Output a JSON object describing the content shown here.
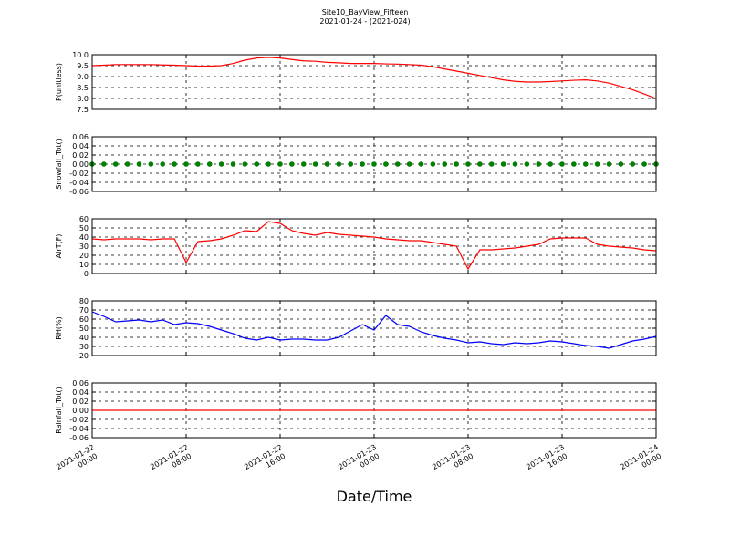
{
  "title": "Site10_BayView_Fifteen",
  "subtitle": "2021-01-24 - (2021-024)",
  "xlabel": "Date/Time",
  "x": [
    "2021-01-22 00:00",
    "2021-01-22 01:00",
    "2021-01-22 02:00",
    "2021-01-22 03:00",
    "2021-01-22 04:00",
    "2021-01-22 05:00",
    "2021-01-22 06:00",
    "2021-01-22 07:00",
    "2021-01-22 08:00",
    "2021-01-22 09:00",
    "2021-01-22 10:00",
    "2021-01-22 11:00",
    "2021-01-22 12:00",
    "2021-01-22 13:00",
    "2021-01-22 14:00",
    "2021-01-22 15:00",
    "2021-01-22 16:00",
    "2021-01-22 17:00",
    "2021-01-22 18:00",
    "2021-01-22 19:00",
    "2021-01-22 20:00",
    "2021-01-22 21:00",
    "2021-01-22 22:00",
    "2021-01-22 23:00",
    "2021-01-23 00:00",
    "2021-01-23 01:00",
    "2021-01-23 02:00",
    "2021-01-23 03:00",
    "2021-01-23 04:00",
    "2021-01-23 05:00",
    "2021-01-23 06:00",
    "2021-01-23 07:00",
    "2021-01-23 08:00",
    "2021-01-23 09:00",
    "2021-01-23 10:00",
    "2021-01-23 11:00",
    "2021-01-23 12:00",
    "2021-01-23 13:00",
    "2021-01-23 14:00",
    "2021-01-23 15:00",
    "2021-01-23 16:00",
    "2021-01-23 17:00",
    "2021-01-23 18:00",
    "2021-01-23 19:00",
    "2021-01-23 20:00",
    "2021-01-23 21:00",
    "2021-01-23 22:00",
    "2021-01-23 23:00",
    "2021-01-24 00:00"
  ],
  "xlim": [
    "2021-01-22 00:00",
    "2021-01-24 00:00"
  ],
  "xticks": [
    "2021-01-22 00:00",
    "2021-01-22 08:00",
    "2021-01-22 16:00",
    "2021-01-23 00:00",
    "2021-01-23 08:00",
    "2021-01-23 16:00",
    "2021-01-24 00:00"
  ],
  "chart_data": [
    {
      "type": "line",
      "ylabel": "P(unitless)",
      "color": "#ff0000",
      "grid": true,
      "ylim": [
        7.5,
        10.0
      ],
      "yticks": [
        7.5,
        {
          "value": 8,
          "label": "8.0"
        },
        8.5,
        {
          "value": 9,
          "label": "9.0"
        },
        9.5,
        {
          "value": 10,
          "label": "10.0"
        }
      ],
      "values": [
        9.5,
        9.52,
        9.55,
        9.55,
        9.55,
        9.55,
        9.53,
        9.52,
        9.5,
        9.48,
        9.48,
        9.5,
        9.6,
        9.75,
        9.85,
        9.88,
        9.85,
        9.78,
        9.72,
        9.7,
        9.65,
        9.63,
        9.6,
        9.6,
        9.6,
        9.58,
        9.57,
        9.55,
        9.52,
        9.45,
        9.35,
        9.25,
        9.15,
        9.05,
        8.95,
        8.85,
        8.78,
        8.75,
        8.75,
        8.77,
        8.8,
        8.83,
        8.85,
        8.8,
        8.7,
        8.55,
        8.4,
        8.2,
        8.0
      ]
    },
    {
      "type": "scatter",
      "ylabel": "Snowfall_Tot()",
      "color": "#008000",
      "grid": true,
      "ylim": [
        -0.06,
        0.06
      ],
      "yticks": [
        -0.06,
        -0.04,
        -0.02,
        {
          "value": 0,
          "label": "0.00"
        },
        0.02,
        0.04,
        0.06
      ],
      "values": [
        0,
        0,
        0,
        0,
        0,
        0,
        0,
        0,
        0,
        0,
        0,
        0,
        0,
        0,
        0,
        0,
        0,
        0,
        0,
        0,
        0,
        0,
        0,
        0,
        0,
        0,
        0,
        0,
        0,
        0,
        0,
        0,
        0,
        0,
        0,
        0,
        0,
        0,
        0,
        0,
        0,
        0,
        0,
        0,
        0,
        0,
        0,
        0,
        0
      ]
    },
    {
      "type": "line",
      "ylabel": "AirT(F)",
      "color": "#ff0000",
      "grid": true,
      "ylim": [
        0,
        60
      ],
      "yticks": [
        0,
        10,
        20,
        30,
        40,
        50,
        60
      ],
      "values": [
        38,
        37,
        38,
        38,
        38,
        37,
        38,
        38,
        12,
        35,
        36,
        38,
        42,
        47,
        46,
        57,
        55,
        47,
        44,
        42,
        45,
        43,
        42,
        41,
        40,
        38,
        37,
        36,
        36,
        34,
        32,
        30,
        5,
        26,
        26,
        27,
        28,
        30,
        32,
        38,
        39,
        39,
        39,
        32,
        30,
        29,
        28,
        26,
        25
      ]
    },
    {
      "type": "line",
      "ylabel": "RH(%)",
      "color": "#0000ff",
      "grid": true,
      "ylim": [
        20,
        80
      ],
      "yticks": [
        20,
        30,
        40,
        50,
        60,
        70,
        80
      ],
      "values": [
        68,
        63,
        57,
        58,
        59,
        57,
        59,
        54,
        56,
        55,
        52,
        48,
        44,
        39,
        37,
        40,
        37,
        38,
        38,
        37,
        37,
        40,
        47,
        54,
        48,
        64,
        54,
        52,
        46,
        42,
        39,
        37,
        34,
        35,
        33,
        32,
        34,
        33,
        34,
        36,
        35,
        33,
        31,
        30,
        28,
        32,
        36,
        38,
        41
      ]
    },
    {
      "type": "line",
      "ylabel": "Rainfall_Tot()",
      "color": "#ff0000",
      "grid": true,
      "ylim": [
        -0.06,
        0.06
      ],
      "yticks": [
        -0.06,
        -0.04,
        -0.02,
        {
          "value": 0,
          "label": "0.00"
        },
        0.02,
        0.04,
        0.06
      ],
      "values": [
        0,
        0,
        0,
        0,
        0,
        0,
        0,
        0,
        0,
        0,
        0,
        0,
        0,
        0,
        0,
        0,
        0,
        0,
        0,
        0,
        0,
        0,
        0,
        0,
        0,
        0,
        0,
        0,
        0,
        0,
        0,
        0,
        0,
        0,
        0,
        0,
        0,
        0,
        0,
        0,
        0,
        0,
        0,
        0,
        0,
        0,
        0,
        0,
        0
      ]
    }
  ]
}
